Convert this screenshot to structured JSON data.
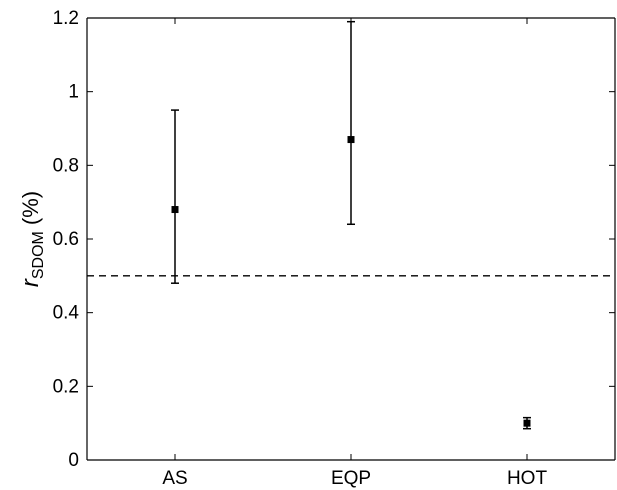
{
  "chart_data": {
    "type": "scatter",
    "categories": [
      "AS",
      "EQP",
      "HOT"
    ],
    "series": [
      {
        "values": [
          0.68,
          0.87,
          0.1
        ],
        "error_low": [
          0.48,
          0.64,
          0.085
        ],
        "error_high": [
          0.95,
          1.19,
          0.115
        ]
      }
    ],
    "reference_line": {
      "y": 0.5,
      "style": "dashed"
    },
    "ylabel": {
      "main": "r",
      "subscript": "SDOM",
      "unit": "(%)"
    },
    "xlabel": "",
    "title": "",
    "ylim": [
      0,
      1.2
    ],
    "yticks": [
      "0",
      "0.2",
      "0.4",
      "0.6",
      "0.8",
      "1",
      "1.2"
    ],
    "grid": false,
    "colors": {
      "axis": "#000000",
      "marker": "#000000",
      "reference_line": "#000000"
    }
  }
}
